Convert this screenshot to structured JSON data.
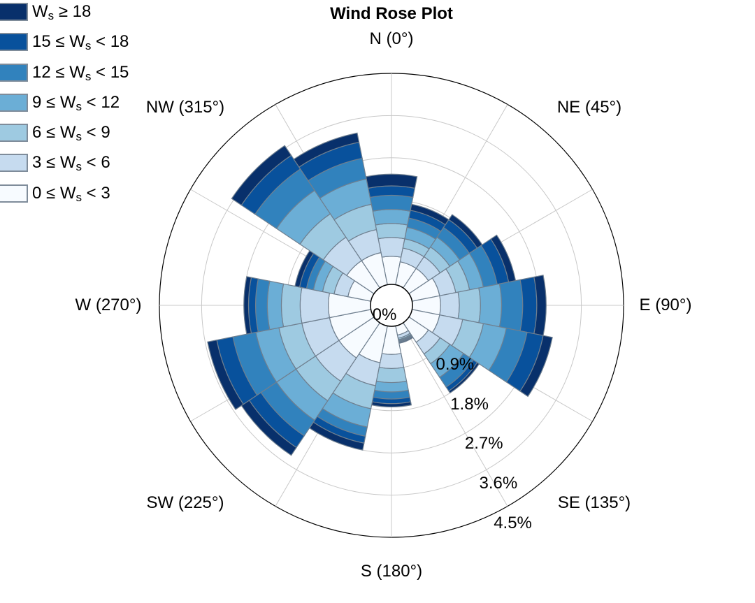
{
  "chart_data": {
    "type": "wind-rose",
    "title": "Wind Rose Plot",
    "directions": [
      "N (0°)",
      "NE (45°)",
      "E (90°)",
      "SE (135°)",
      "S (180°)",
      "SW (225°)",
      "W (270°)",
      "NW (315°)"
    ],
    "radial_ticks": [
      "0%",
      "0.9%",
      "1.8%",
      "2.7%",
      "3.6%",
      "4.5%"
    ],
    "radial_max": 4.5,
    "legend": [
      {
        "main": "W",
        "sub": "s",
        "pre": "",
        "post": " ≥ 18",
        "color": "#08306b"
      },
      {
        "main": "W",
        "sub": "s",
        "pre": "15 ≤ ",
        "post": " < 18",
        "color": "#08519c"
      },
      {
        "main": "W",
        "sub": "s",
        "pre": "12 ≤ ",
        "post": " < 15",
        "color": "#3182bd"
      },
      {
        "main": "W",
        "sub": "s",
        "pre": "9 ≤ ",
        "post": " < 12",
        "color": "#6baed6"
      },
      {
        "main": "W",
        "sub": "s",
        "pre": "6 ≤ ",
        "post": " < 9",
        "color": "#9ecae1"
      },
      {
        "main": "W",
        "sub": "s",
        "pre": "3 ≤ ",
        "post": " < 6",
        "color": "#c6dbef"
      },
      {
        "main": "W",
        "sub": "s",
        "pre": "0 ≤ ",
        "post": " < 3",
        "color": "#f7fbff"
      }
    ],
    "sectors": [
      {
        "direction_deg": 0,
        "cumulative": [
          0.6,
          1.0,
          1.3,
          1.6,
          1.9,
          2.1,
          2.35
        ]
      },
      {
        "direction_deg": 22.5,
        "cumulative": [
          0.5,
          0.8,
          1.0,
          1.25,
          1.45,
          1.62,
          1.75
        ]
      },
      {
        "direction_deg": 45,
        "cumulative": [
          0.5,
          0.8,
          1.05,
          1.3,
          1.55,
          1.75,
          1.88
        ]
      },
      {
        "direction_deg": 67.5,
        "cumulative": [
          0.6,
          0.95,
          1.25,
          1.55,
          1.85,
          2.1,
          2.25
        ]
      },
      {
        "direction_deg": 90,
        "cumulative": [
          0.6,
          1.0,
          1.45,
          1.9,
          2.35,
          2.65,
          2.85
        ]
      },
      {
        "direction_deg": 112.5,
        "cumulative": [
          0.6,
          1.1,
          1.55,
          2.05,
          2.5,
          2.85,
          3.05
        ]
      },
      {
        "direction_deg": 135,
        "cumulative": [
          0.5,
          0.8,
          1.05,
          1.4,
          1.65,
          1.75,
          1.8
        ]
      },
      {
        "direction_deg": 157.5,
        "cumulative": [
          0.2,
          0.27,
          0.3,
          0.32,
          0.34,
          0.36,
          0.38
        ]
      },
      {
        "direction_deg": 180,
        "cumulative": [
          0.6,
          0.9,
          1.2,
          1.4,
          1.55,
          1.65,
          1.72
        ]
      },
      {
        "direction_deg": 202.5,
        "cumulative": [
          0.8,
          1.3,
          1.8,
          2.2,
          2.4,
          2.55,
          2.7
        ]
      },
      {
        "direction_deg": 225,
        "cumulative": [
          0.9,
          1.5,
          2.0,
          2.5,
          2.9,
          3.2,
          3.4
        ]
      },
      {
        "direction_deg": 247.5,
        "cumulative": [
          0.9,
          1.5,
          2.0,
          2.5,
          3.0,
          3.35,
          3.55
        ]
      },
      {
        "direction_deg": 270,
        "cumulative": [
          0.9,
          1.5,
          1.9,
          2.2,
          2.45,
          2.6,
          2.7
        ]
      },
      {
        "direction_deg": 292.5,
        "cumulative": [
          0.5,
          0.8,
          1.05,
          1.25,
          1.4,
          1.55,
          1.65
        ]
      },
      {
        "direction_deg": 315,
        "cumulative": [
          0.7,
          1.3,
          1.9,
          2.5,
          3.05,
          3.4,
          3.65
        ]
      },
      {
        "direction_deg": 337.5,
        "cumulative": [
          0.7,
          1.2,
          1.75,
          2.3,
          2.75,
          3.1,
          3.3
        ]
      }
    ],
    "grid": true
  }
}
